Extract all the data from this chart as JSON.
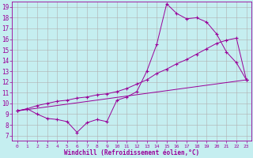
{
  "xlabel": "Windchill (Refroidissement éolien,°C)",
  "line_color": "#990099",
  "bg_color": "#c5eef0",
  "grid_color": "#b0b0b0",
  "xlim": [
    -0.5,
    23.5
  ],
  "ylim": [
    6.5,
    19.5
  ],
  "xticks": [
    0,
    1,
    2,
    3,
    4,
    5,
    6,
    7,
    8,
    9,
    10,
    11,
    12,
    13,
    14,
    15,
    16,
    17,
    18,
    19,
    20,
    21,
    22,
    23
  ],
  "yticks": [
    7,
    8,
    9,
    10,
    11,
    12,
    13,
    14,
    15,
    16,
    17,
    18,
    19
  ],
  "curve1_x": [
    0,
    1,
    2,
    3,
    4,
    5,
    6,
    7,
    8,
    9,
    10,
    11,
    12,
    13,
    14,
    15,
    16,
    17,
    18,
    19,
    20,
    21,
    22,
    23
  ],
  "curve1_y": [
    9.3,
    9.5,
    9.0,
    8.6,
    8.5,
    8.3,
    7.3,
    8.2,
    8.5,
    8.3,
    10.3,
    10.6,
    11.1,
    13.0,
    15.5,
    19.3,
    18.4,
    17.9,
    18.0,
    17.6,
    16.5,
    14.8,
    13.8,
    12.2
  ],
  "curve2_x": [
    0,
    1,
    2,
    3,
    4,
    5,
    6,
    7,
    8,
    9,
    10,
    11,
    12,
    13,
    14,
    15,
    16,
    17,
    18,
    19,
    20,
    21,
    22,
    23
  ],
  "curve2_y": [
    9.3,
    9.5,
    9.8,
    10.0,
    10.2,
    10.3,
    10.5,
    10.6,
    10.8,
    10.9,
    11.1,
    11.4,
    11.8,
    12.2,
    12.8,
    13.2,
    13.7,
    14.1,
    14.6,
    15.1,
    15.6,
    15.9,
    16.1,
    12.2
  ],
  "curve3_x": [
    0,
    23
  ],
  "curve3_y": [
    9.3,
    12.2
  ]
}
